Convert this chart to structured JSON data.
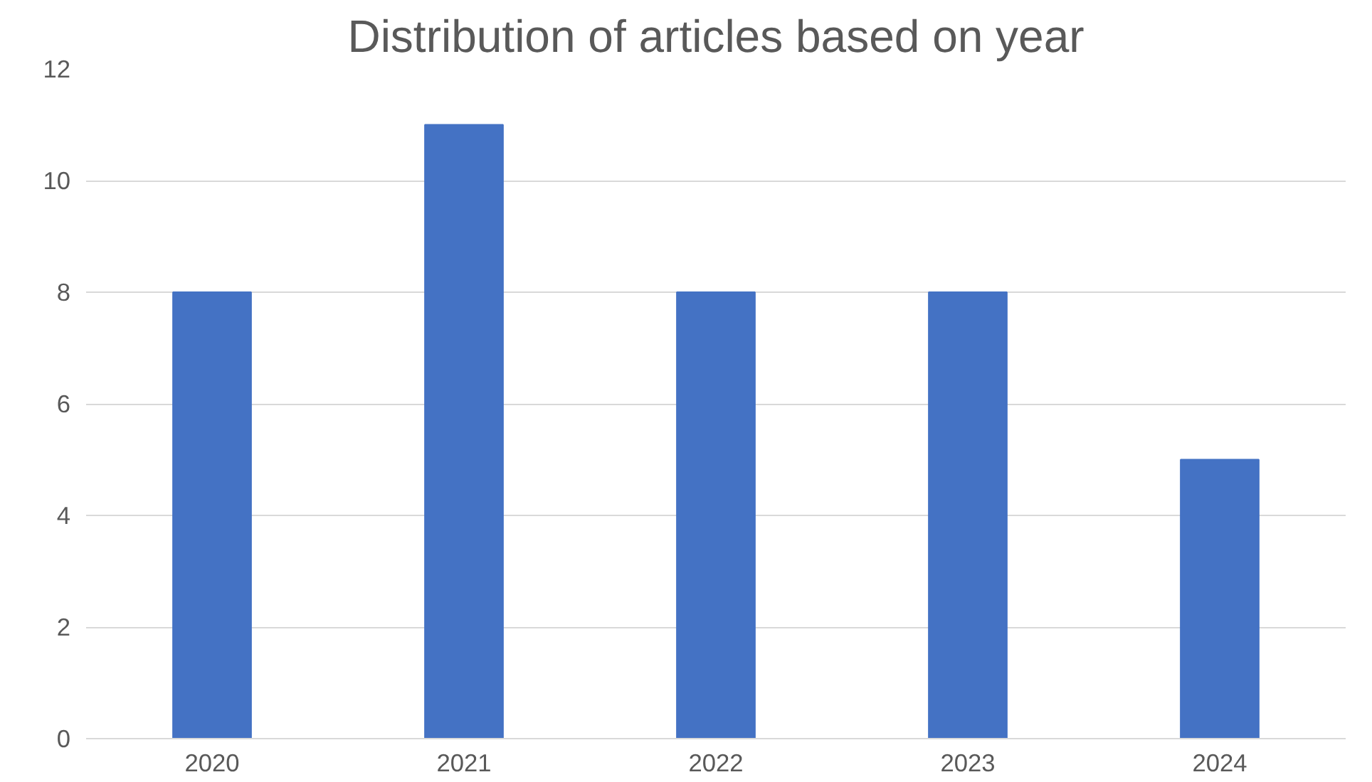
{
  "chart_data": {
    "type": "bar",
    "title": "Distribution of articles based on year",
    "categories": [
      "2020",
      "2021",
      "2022",
      "2023",
      "2024"
    ],
    "values": [
      8,
      11,
      8,
      8,
      5
    ],
    "color": "#4472c4",
    "ylim": [
      0,
      12
    ],
    "yticks": [
      0,
      2,
      4,
      6,
      8,
      10,
      12
    ],
    "grid": "y"
  }
}
